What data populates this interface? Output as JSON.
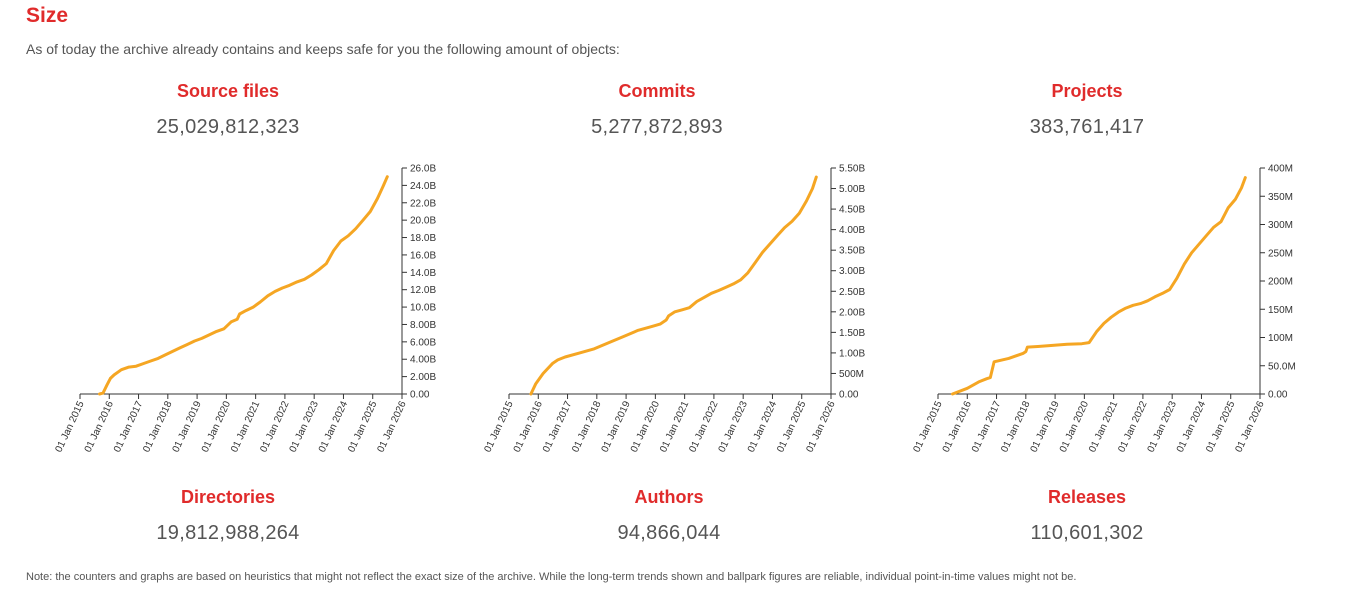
{
  "header": {
    "title": "Size",
    "intro": "As of today the archive already contains and keeps safe for you the following amount of objects:"
  },
  "stats": [
    {
      "label": "Source files",
      "value": "25,029,812,323"
    },
    {
      "label": "Commits",
      "value": "5,277,872,893"
    },
    {
      "label": "Projects",
      "value": "383,761,417"
    },
    {
      "label": "Directories",
      "value": "19,812,988,264"
    },
    {
      "label": "Authors",
      "value": "94,866,044"
    },
    {
      "label": "Releases",
      "value": "110,601,302"
    }
  ],
  "footer": {
    "note": "Note: the counters and graphs are based on heuristics that might not reflect the exact size of the archive. While the long-term trends shown and ballpark figures are reliable, individual point-in-time values might not be."
  },
  "colors": {
    "accent": "#e02b2b",
    "line": "#f5a623",
    "text": "#555555"
  },
  "chart_data": [
    {
      "type": "line",
      "series": [
        {
          "x": [
            "2015-09-01",
            "2015-10-15",
            "2015-12-01",
            "2016-01-15",
            "2016-03-01",
            "2016-06-01",
            "2016-09-01",
            "2016-12-01",
            "2017-03-01",
            "2017-06-01",
            "2017-09-01",
            "2017-12-01",
            "2018-03-01",
            "2018-06-01",
            "2018-09-01",
            "2018-12-01",
            "2019-03-01",
            "2019-06-01",
            "2019-09-01",
            "2019-12-01",
            "2020-03-01",
            "2020-05-15",
            "2020-06-15",
            "2020-09-01",
            "2020-12-01",
            "2021-03-01",
            "2021-06-01",
            "2021-09-01",
            "2021-12-01",
            "2022-03-01",
            "2022-06-01",
            "2022-09-01",
            "2022-12-01",
            "2023-03-01",
            "2023-06-01",
            "2023-09-01",
            "2023-12-01",
            "2024-03-01",
            "2024-06-01",
            "2024-09-01",
            "2024-12-01",
            "2025-03-01",
            "2025-05-15",
            "2025-07-01"
          ],
          "y": [
            0.0,
            0.1,
            1.0,
            1.8,
            2.2,
            2.8,
            3.1,
            3.2,
            3.5,
            3.8,
            4.1,
            4.5,
            4.9,
            5.3,
            5.7,
            6.1,
            6.4,
            6.8,
            7.2,
            7.5,
            8.3,
            8.6,
            9.2,
            9.6,
            10.0,
            10.6,
            11.3,
            11.8,
            12.2,
            12.5,
            12.9,
            13.2,
            13.7,
            14.3,
            15.0,
            16.5,
            17.6,
            18.2,
            19.0,
            20.0,
            21.0,
            22.5,
            24.0,
            25.0
          ]
        }
      ],
      "yticks": [
        0,
        2,
        4,
        6,
        8,
        10,
        12,
        14,
        16,
        18,
        20,
        22,
        24,
        26
      ],
      "ytick_labels": [
        "0.00",
        "2.00B",
        "4.00B",
        "6.00B",
        "8.00B",
        "10.0B",
        "12.0B",
        "14.0B",
        "16.0B",
        "18.0B",
        "20.0B",
        "22.0B",
        "24.0B",
        "26.0B"
      ],
      "ylim": [
        0,
        26
      ],
      "xlim": [
        "2015-01-01",
        "2026-01-01"
      ],
      "xticks": [
        "01 Jan 2015",
        "01 Jan 2016",
        "01 Jan 2017",
        "01 Jan 2018",
        "01 Jan 2019",
        "01 Jan 2020",
        "01 Jan 2021",
        "01 Jan 2022",
        "01 Jan 2023",
        "01 Jan 2024",
        "01 Jan 2025",
        "01 Jan 2026"
      ]
    },
    {
      "type": "line",
      "series": [
        {
          "x": [
            "2015-10-01",
            "2015-12-01",
            "2016-03-01",
            "2016-07-01",
            "2016-09-01",
            "2016-12-01",
            "2017-06-01",
            "2017-12-01",
            "2018-06-01",
            "2018-12-01",
            "2019-06-01",
            "2019-12-01",
            "2020-03-01",
            "2020-05-15",
            "2020-06-15",
            "2020-09-01",
            "2020-12-01",
            "2021-03-01",
            "2021-06-01",
            "2021-09-01",
            "2021-12-01",
            "2022-03-01",
            "2022-06-01",
            "2022-09-01",
            "2022-12-01",
            "2023-03-01",
            "2023-06-01",
            "2023-09-01",
            "2023-12-01",
            "2024-03-01",
            "2024-06-01",
            "2024-09-01",
            "2024-12-01",
            "2025-03-01",
            "2025-05-15",
            "2025-07-01"
          ],
          "y": [
            0.0,
            0.25,
            0.5,
            0.75,
            0.83,
            0.9,
            1.0,
            1.1,
            1.25,
            1.4,
            1.55,
            1.65,
            1.7,
            1.8,
            1.9,
            2.0,
            2.05,
            2.1,
            2.25,
            2.35,
            2.45,
            2.52,
            2.6,
            2.68,
            2.78,
            2.95,
            3.2,
            3.45,
            3.65,
            3.85,
            4.05,
            4.2,
            4.4,
            4.7,
            5.0,
            5.28
          ]
        }
      ],
      "yticks": [
        0,
        0.5,
        1,
        1.5,
        2,
        2.5,
        3,
        3.5,
        4,
        4.5,
        5,
        5.5
      ],
      "ytick_labels": [
        "0.00",
        "500M",
        "1.00B",
        "1.50B",
        "2.00B",
        "2.50B",
        "3.00B",
        "3.50B",
        "4.00B",
        "4.50B",
        "5.00B",
        "5.50B"
      ],
      "ylim": [
        0,
        5.5
      ],
      "xlim": [
        "2015-01-01",
        "2026-01-01"
      ],
      "xticks": [
        "01 Jan 2015",
        "01 Jan 2016",
        "01 Jan 2017",
        "01 Jan 2018",
        "01 Jan 2019",
        "01 Jan 2020",
        "01 Jan 2021",
        "01 Jan 2022",
        "01 Jan 2023",
        "01 Jan 2024",
        "01 Jan 2025",
        "01 Jan 2026"
      ]
    },
    {
      "type": "line",
      "series": [
        {
          "x": [
            "2015-07-01",
            "2016-01-01",
            "2016-06-01",
            "2016-09-01",
            "2016-10-15",
            "2016-12-01",
            "2017-06-01",
            "2017-12-01",
            "2018-01-01",
            "2018-01-20",
            "2018-06-01",
            "2018-12-01",
            "2019-06-01",
            "2019-12-01",
            "2020-03-01",
            "2020-06-01",
            "2020-09-01",
            "2020-12-01",
            "2021-03-01",
            "2021-06-01",
            "2021-09-01",
            "2021-12-01",
            "2022-03-01",
            "2022-06-01",
            "2022-09-01",
            "2022-12-01",
            "2023-03-01",
            "2023-06-01",
            "2023-09-01",
            "2023-12-01",
            "2024-03-01",
            "2024-06-01",
            "2024-09-01",
            "2024-12-01",
            "2025-03-01",
            "2025-05-15",
            "2025-07-01"
          ],
          "y": [
            0,
            10,
            22,
            27,
            29,
            57,
            63,
            72,
            75,
            83,
            84,
            86,
            88,
            89,
            91,
            110,
            125,
            136,
            145,
            152,
            157,
            160,
            165,
            172,
            178,
            185,
            205,
            230,
            250,
            265,
            280,
            295,
            305,
            330,
            345,
            365,
            383
          ]
        }
      ],
      "yticks": [
        0,
        50,
        100,
        150,
        200,
        250,
        300,
        350,
        400
      ],
      "ytick_labels": [
        "0.00",
        "50.0M",
        "100M",
        "150M",
        "200M",
        "250M",
        "300M",
        "350M",
        "400M"
      ],
      "ylim": [
        0,
        400
      ],
      "xlim": [
        "2015-01-01",
        "2026-01-01"
      ],
      "xticks": [
        "01 Jan 2015",
        "01 Jan 2016",
        "01 Jan 2017",
        "01 Jan 2018",
        "01 Jan 2019",
        "01 Jan 2020",
        "01 Jan 2021",
        "01 Jan 2022",
        "01 Jan 2023",
        "01 Jan 2024",
        "01 Jan 2025",
        "01 Jan 2026"
      ]
    }
  ]
}
